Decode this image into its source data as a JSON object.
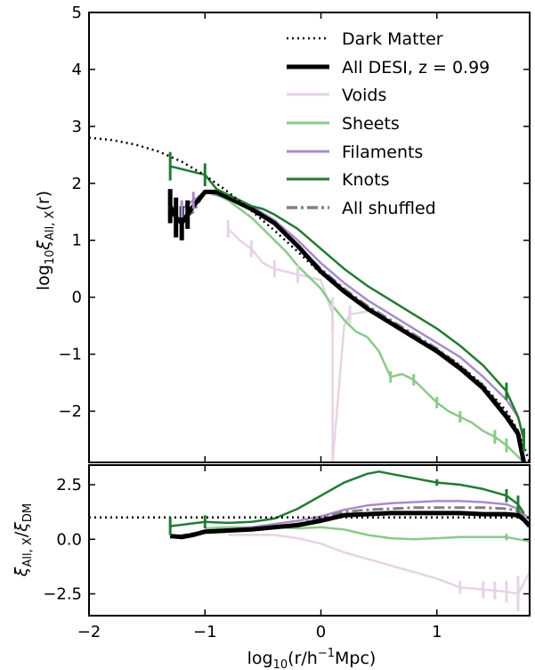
{
  "chart_data": [
    {
      "type": "line",
      "panel": "top",
      "ylabel_base": "log",
      "ylabel_base_sub": "10",
      "ylabel_xi": "ξ",
      "ylabel_sub": "All, X",
      "ylabel_arg": "(r)",
      "xlim": [
        -2,
        1.8
      ],
      "ylim": [
        -2.9,
        5
      ],
      "yticks": [
        "−2",
        "−1",
        "0",
        "1",
        "2",
        "3",
        "4",
        "5"
      ],
      "ytick_values": [
        -2,
        -1,
        0,
        1,
        2,
        3,
        4,
        5
      ],
      "legend_position": "top-right",
      "colors": {
        "dark_matter": "#000000",
        "all_desi": "#000000",
        "voids": "#e6d3e6",
        "sheets": "#8bc98b",
        "filaments": "#a98bc9",
        "knots": "#237a33",
        "all_shuffled": "#808080"
      },
      "series": [
        {
          "key": "dark_matter",
          "name": "Dark Matter",
          "style": "dotted",
          "x": [
            -2.0,
            -1.8,
            -1.6,
            -1.4,
            -1.2,
            -1.0,
            -0.8,
            -0.6,
            -0.4,
            -0.2,
            0.0,
            0.2,
            0.4,
            0.6,
            0.8,
            1.0,
            1.2,
            1.4,
            1.6,
            1.7,
            1.8
          ],
          "y": [
            2.8,
            2.76,
            2.68,
            2.56,
            2.38,
            2.14,
            1.85,
            1.52,
            1.17,
            0.8,
            0.42,
            0.08,
            -0.2,
            -0.45,
            -0.68,
            -0.92,
            -1.2,
            -1.55,
            -2.0,
            -2.35,
            -2.9
          ]
        },
        {
          "key": "all_desi",
          "name": "All DESI, z = 0.99",
          "style": "thick",
          "x": [
            -1.3,
            -1.25,
            -1.2,
            -1.15,
            -1.1,
            -1.0,
            -0.9,
            -0.8,
            -0.7,
            -0.6,
            -0.4,
            -0.2,
            0.0,
            0.2,
            0.4,
            0.6,
            0.8,
            1.0,
            1.2,
            1.4,
            1.5,
            1.6,
            1.7,
            1.75
          ],
          "y": [
            1.6,
            1.4,
            1.3,
            1.45,
            1.6,
            1.85,
            1.85,
            1.75,
            1.65,
            1.55,
            1.3,
            0.9,
            0.45,
            0.1,
            -0.2,
            -0.45,
            -0.7,
            -0.95,
            -1.25,
            -1.6,
            -1.85,
            -2.1,
            -2.4,
            -2.9
          ]
        },
        {
          "key": "voids",
          "name": "Voids",
          "style": "solid",
          "x": [
            -0.8,
            -0.7,
            -0.6,
            -0.5,
            -0.4,
            -0.3,
            -0.2,
            -0.1,
            0.0,
            0.1,
            0.1,
            0.2,
            0.25,
            0.4
          ],
          "y": [
            1.2,
            1.0,
            0.85,
            0.6,
            0.5,
            0.45,
            0.4,
            0.35,
            0.3,
            -0.3,
            -2.9,
            -0.5,
            -0.3,
            -0.25
          ]
        },
        {
          "key": "sheets",
          "name": "Sheets",
          "style": "solid",
          "x": [
            -1.0,
            -0.9,
            -0.8,
            -0.7,
            -0.6,
            -0.5,
            -0.4,
            -0.3,
            -0.2,
            -0.1,
            0.0,
            0.1,
            0.2,
            0.3,
            0.4,
            0.5,
            0.6,
            0.7,
            0.8,
            0.9,
            1.0,
            1.1,
            1.2,
            1.3,
            1.4,
            1.5,
            1.6,
            1.7,
            1.75
          ],
          "y": [
            1.85,
            1.8,
            1.7,
            1.55,
            1.4,
            1.2,
            1.0,
            0.8,
            0.55,
            0.35,
            0.15,
            -0.15,
            -0.4,
            -0.6,
            -0.7,
            -0.95,
            -1.4,
            -1.35,
            -1.45,
            -1.65,
            -1.85,
            -2.0,
            -2.1,
            -2.2,
            -2.35,
            -2.45,
            -2.6,
            -2.8,
            -2.9
          ]
        },
        {
          "key": "filaments",
          "name": "Filaments",
          "style": "solid",
          "x": [
            -1.2,
            -1.1,
            -1.0,
            -0.9,
            -0.8,
            -0.7,
            -0.6,
            -0.4,
            -0.2,
            0.0,
            0.2,
            0.4,
            0.6,
            0.8,
            1.0,
            1.2,
            1.4,
            1.6,
            1.7,
            1.75
          ],
          "y": [
            1.55,
            1.7,
            1.85,
            1.85,
            1.8,
            1.7,
            1.6,
            1.35,
            1.0,
            0.6,
            0.25,
            -0.05,
            -0.3,
            -0.55,
            -0.8,
            -1.05,
            -1.4,
            -1.8,
            -2.1,
            -2.5
          ]
        },
        {
          "key": "knots",
          "name": "Knots",
          "style": "solid",
          "x": [
            -1.3,
            -1.0,
            -0.9,
            -0.8,
            -0.7,
            -0.6,
            -0.5,
            -0.4,
            -0.2,
            0.0,
            0.2,
            0.4,
            0.6,
            0.8,
            1.0,
            1.2,
            1.4,
            1.6,
            1.7,
            1.75
          ],
          "y": [
            2.3,
            2.15,
            1.9,
            1.8,
            1.7,
            1.6,
            1.55,
            1.45,
            1.2,
            0.85,
            0.5,
            0.2,
            -0.05,
            -0.3,
            -0.55,
            -0.85,
            -1.2,
            -1.65,
            -2.1,
            -2.5
          ]
        },
        {
          "key": "all_shuffled",
          "name": "All shuffled",
          "style": "dashdot",
          "x": [
            -1.3,
            -1.2,
            -1.1,
            -1.0,
            -0.8,
            -0.6,
            -0.4,
            -0.2,
            0.0,
            0.2,
            0.4,
            0.6,
            0.8,
            1.0,
            1.2,
            1.4,
            1.6,
            1.7,
            1.75
          ],
          "y": [
            1.55,
            1.35,
            1.5,
            1.85,
            1.75,
            1.55,
            1.3,
            0.9,
            0.5,
            0.15,
            -0.15,
            -0.4,
            -0.65,
            -0.9,
            -1.2,
            -1.55,
            -2.05,
            -2.35,
            -2.9
          ]
        }
      ],
      "error_bars": [
        {
          "series": "all_desi",
          "x": [
            -1.3,
            -1.25,
            -1.2,
            -1.15
          ],
          "y": [
            1.6,
            1.4,
            1.3,
            1.45
          ],
          "err": [
            0.3,
            0.35,
            0.3,
            0.25
          ]
        },
        {
          "series": "knots",
          "x": [
            -1.3,
            -1.0,
            1.6,
            1.75
          ],
          "y": [
            2.3,
            2.15,
            -1.65,
            -2.5
          ],
          "err": [
            0.25,
            0.2,
            0.15,
            0.2
          ]
        },
        {
          "series": "voids",
          "x": [
            -0.8,
            -0.6,
            -0.4,
            -0.2,
            0.1,
            0.25
          ],
          "y": [
            1.2,
            0.85,
            0.5,
            0.4,
            -0.3,
            -0.3
          ],
          "err": [
            0.15,
            0.15,
            0.15,
            0.15,
            0.3,
            0.15
          ]
        },
        {
          "series": "sheets",
          "x": [
            0.6,
            0.8,
            1.0,
            1.2,
            1.5,
            1.6
          ],
          "y": [
            -1.4,
            -1.45,
            -1.85,
            -2.1,
            -2.45,
            -2.6
          ],
          "err": [
            0.1,
            0.1,
            0.1,
            0.1,
            0.12,
            0.12
          ]
        },
        {
          "series": "filaments",
          "x": [
            -1.2,
            -1.1
          ],
          "y": [
            1.55,
            1.7
          ],
          "err": [
            0.15,
            0.15
          ]
        }
      ]
    },
    {
      "type": "line",
      "panel": "bottom",
      "ylabel_xi": "ξ",
      "ylabel_sub1": "All, X",
      "ylabel_sub2": "DM",
      "xlabel_base": "log",
      "xlabel_base_sub": "10",
      "xlabel_arg_open": "(r/h",
      "xlabel_arg_sup": "−1",
      "xlabel_arg_close": "Mpc)",
      "xlim": [
        -2,
        1.8
      ],
      "ylim": [
        -3.5,
        3.4
      ],
      "xticks": [
        "−2",
        "−1",
        "0",
        "1"
      ],
      "xtick_values": [
        -2,
        -1,
        0,
        1
      ],
      "yticks": [
        "−2.5",
        "0.0",
        "2.5"
      ],
      "ytick_values": [
        -2.5,
        0,
        2.5
      ],
      "series": [
        {
          "key": "dark_matter",
          "style": "dotted",
          "x": [
            -2.0,
            1.8
          ],
          "y": [
            1.0,
            1.0
          ]
        },
        {
          "key": "all_desi",
          "style": "thick",
          "x": [
            -1.3,
            -1.2,
            -1.1,
            -1.0,
            -0.8,
            -0.6,
            -0.4,
            -0.2,
            0.0,
            0.2,
            0.4,
            0.6,
            0.8,
            1.0,
            1.2,
            1.4,
            1.6,
            1.7,
            1.75,
            1.8
          ],
          "y": [
            0.15,
            0.1,
            0.2,
            0.35,
            0.4,
            0.45,
            0.55,
            0.65,
            0.85,
            1.1,
            1.15,
            1.2,
            1.2,
            1.2,
            1.2,
            1.15,
            1.15,
            1.1,
            0.9,
            0.6
          ]
        },
        {
          "key": "voids",
          "style": "solid",
          "x": [
            -0.8,
            -0.6,
            -0.4,
            -0.2,
            0.0,
            0.2,
            0.4,
            0.6,
            0.8,
            1.0,
            1.2,
            1.4,
            1.6,
            1.7,
            1.8
          ],
          "y": [
            0.2,
            0.2,
            0.2,
            0.05,
            -0.2,
            -0.6,
            -0.9,
            -1.2,
            -1.5,
            -1.8,
            -2.2,
            -2.3,
            -2.4,
            -2.5,
            -1.5
          ]
        },
        {
          "key": "sheets",
          "style": "solid",
          "x": [
            -1.0,
            -0.8,
            -0.6,
            -0.4,
            -0.2,
            0.0,
            0.2,
            0.4,
            0.6,
            0.8,
            1.0,
            1.2,
            1.4,
            1.6,
            1.7,
            1.8
          ],
          "y": [
            0.5,
            0.55,
            0.55,
            0.55,
            0.5,
            0.55,
            0.45,
            0.2,
            0.05,
            0.0,
            0.05,
            0.1,
            0.1,
            0.1,
            0.0,
            -0.1
          ]
        },
        {
          "key": "filaments",
          "style": "solid",
          "x": [
            -1.2,
            -1.0,
            -0.8,
            -0.6,
            -0.4,
            -0.2,
            0.0,
            0.2,
            0.4,
            0.6,
            0.8,
            1.0,
            1.2,
            1.4,
            1.6,
            1.7,
            1.8
          ],
          "y": [
            0.2,
            0.3,
            0.45,
            0.55,
            0.7,
            0.85,
            1.05,
            1.35,
            1.55,
            1.65,
            1.7,
            1.75,
            1.75,
            1.7,
            1.6,
            1.4,
            0.9
          ]
        },
        {
          "key": "knots",
          "style": "solid",
          "x": [
            -1.3,
            -1.0,
            -0.8,
            -0.6,
            -0.4,
            -0.2,
            0.0,
            0.2,
            0.4,
            0.5,
            0.6,
            0.8,
            1.0,
            1.2,
            1.4,
            1.6,
            1.7,
            1.75
          ],
          "y": [
            0.6,
            0.8,
            0.75,
            0.8,
            0.95,
            1.4,
            2.0,
            2.6,
            3.0,
            3.1,
            3.0,
            2.8,
            2.6,
            2.5,
            2.3,
            2.0,
            1.6,
            1.2
          ]
        },
        {
          "key": "all_shuffled",
          "style": "dashdot",
          "x": [
            -1.3,
            -1.0,
            -0.8,
            -0.6,
            -0.4,
            -0.2,
            0.0,
            0.2,
            0.4,
            0.6,
            0.8,
            1.0,
            1.2,
            1.4,
            1.6,
            1.7,
            1.75
          ],
          "y": [
            0.1,
            0.35,
            0.4,
            0.45,
            0.55,
            0.7,
            0.95,
            1.25,
            1.35,
            1.4,
            1.45,
            1.45,
            1.45,
            1.45,
            1.4,
            1.3,
            1.0
          ]
        }
      ],
      "error_bars": [
        {
          "series": "knots",
          "x": [
            -1.3,
            -1.0,
            1.0,
            1.6,
            1.7
          ],
          "y": [
            0.6,
            0.8,
            2.6,
            2.0,
            1.6
          ],
          "err": [
            0.4,
            0.3,
            0.15,
            0.3,
            0.4
          ]
        },
        {
          "series": "voids",
          "x": [
            1.2,
            1.4,
            1.5,
            1.6,
            1.7,
            1.8
          ],
          "y": [
            -2.2,
            -2.3,
            -2.35,
            -2.4,
            -2.5,
            -1.5
          ],
          "err": [
            0.3,
            0.4,
            0.4,
            0.5,
            0.8,
            2.0
          ]
        },
        {
          "series": "sheets",
          "x": [
            1.6
          ],
          "y": [
            0.1
          ],
          "err": [
            0.15
          ]
        }
      ]
    }
  ]
}
